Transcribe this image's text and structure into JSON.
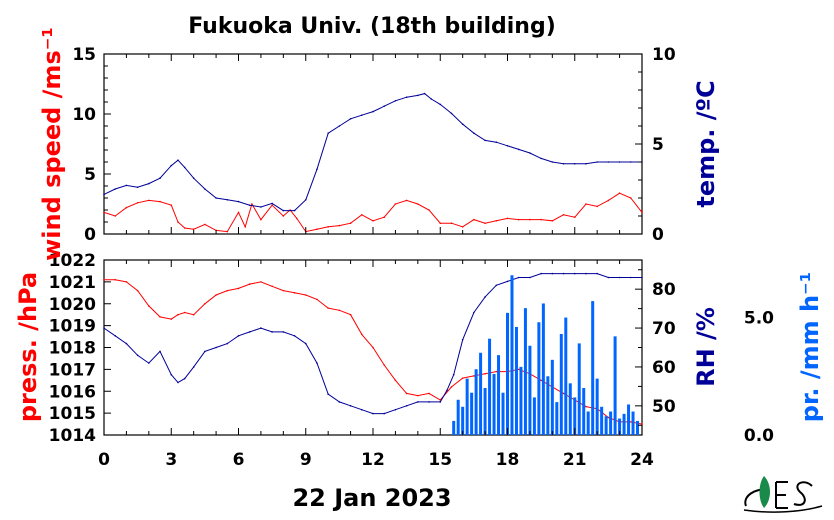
{
  "title": "Fukuoka Univ. (18th building)",
  "date_label": "22 Jan 2023",
  "chart_data": [
    {
      "type": "line",
      "panel": "top",
      "xlim": [
        0,
        24
      ],
      "x_ticks": [
        "0",
        "3",
        "6",
        "9",
        "12",
        "15",
        "18",
        "21",
        "24"
      ],
      "left_axis": {
        "label": "wind speed /ms⁻¹",
        "color": "#ff0000",
        "ylim": [
          0,
          15
        ],
        "ticks": [
          "0",
          "5",
          "10",
          "15"
        ]
      },
      "right_axis": {
        "label": "temp. /ºC",
        "color": "#000099",
        "ylim": [
          0,
          10
        ],
        "ticks": [
          "0",
          "5",
          "10"
        ]
      },
      "series": [
        {
          "axis": "left",
          "color": "#ff0000",
          "x": [
            0,
            0.5,
            1,
            1.5,
            2,
            2.5,
            3,
            3.3,
            3.6,
            4,
            4.5,
            5,
            5.5,
            6,
            6.3,
            6.6,
            7,
            7.5,
            8,
            8.3,
            8.6,
            9,
            9.5,
            10,
            10.5,
            11,
            11.5,
            12,
            12.5,
            13,
            13.5,
            14,
            14.5,
            15,
            15.5,
            16,
            16.5,
            17,
            17.5,
            18,
            18.5,
            19,
            19.5,
            20,
            20.5,
            21,
            21.5,
            22,
            22.5,
            23,
            23.5,
            24
          ],
          "y": [
            1.8,
            1.5,
            2.2,
            2.6,
            2.8,
            2.7,
            2.4,
            1.0,
            0.5,
            0.4,
            0.8,
            0.3,
            0.2,
            1.8,
            0.6,
            2.5,
            1.2,
            2.4,
            1.5,
            2.0,
            1.3,
            0.2,
            0.4,
            0.6,
            0.7,
            0.9,
            1.6,
            1.1,
            1.4,
            2.5,
            2.8,
            2.5,
            2.0,
            0.9,
            0.9,
            0.6,
            1.2,
            0.9,
            1.1,
            1.3,
            1.2,
            1.2,
            1.2,
            1.1,
            1.6,
            1.4,
            2.5,
            2.3,
            2.8,
            3.4,
            3.0,
            1.8
          ]
        },
        {
          "axis": "right",
          "color": "#000099",
          "x": [
            0,
            0.5,
            1,
            1.5,
            2,
            2.5,
            3,
            3.3,
            3.6,
            4,
            4.5,
            5,
            5.5,
            6,
            6.5,
            7,
            7.5,
            8,
            8.5,
            9,
            9.5,
            10,
            10.5,
            11,
            11.5,
            12,
            12.5,
            13,
            13.5,
            14,
            14.3,
            14.6,
            15,
            15.5,
            16,
            16.5,
            17,
            17.5,
            18,
            18.5,
            19,
            19.5,
            20,
            20.5,
            21,
            21.5,
            22,
            22.5,
            23,
            23.5,
            24
          ],
          "y": [
            2.2,
            2.5,
            2.7,
            2.6,
            2.8,
            3.1,
            3.8,
            4.1,
            3.7,
            3.1,
            2.5,
            2.0,
            1.9,
            1.8,
            1.6,
            1.5,
            1.7,
            1.3,
            1.3,
            1.9,
            3.6,
            5.6,
            6.0,
            6.4,
            6.6,
            6.8,
            7.1,
            7.4,
            7.6,
            7.7,
            7.8,
            7.5,
            7.2,
            6.7,
            6.1,
            5.6,
            5.2,
            5.1,
            4.9,
            4.7,
            4.5,
            4.2,
            4.0,
            3.9,
            3.9,
            3.9,
            4.0,
            4.0,
            4.0,
            4.0,
            4.0
          ]
        }
      ]
    },
    {
      "type": "line",
      "panel": "bottom",
      "xlim": [
        0,
        24
      ],
      "x_ticks": [
        "0",
        "3",
        "6",
        "9",
        "12",
        "15",
        "18",
        "21",
        "24"
      ],
      "left_axis": {
        "label": "press. /hPa",
        "color": "#ff0000",
        "ylim": [
          1014,
          1022
        ],
        "ticks": [
          "1014",
          "1015",
          "1016",
          "1017",
          "1018",
          "1019",
          "1020",
          "1021",
          "1022"
        ]
      },
      "right_axis": {
        "label": "RH /%",
        "color": "#000099",
        "ylim": [
          42.5,
          87.5
        ],
        "ticks": [
          "50",
          "60",
          "70",
          "80"
        ]
      },
      "far_axis": {
        "label": "pr. /mm h⁻¹",
        "color": "#0066ff",
        "ylim": [
          0,
          7.45
        ],
        "ticks": [
          "0.0",
          "5.0"
        ]
      },
      "series": [
        {
          "axis": "left",
          "color": "#ff0000",
          "x": [
            0,
            0.5,
            1,
            1.5,
            2,
            2.5,
            3,
            3.3,
            3.6,
            4,
            4.5,
            5,
            5.5,
            6,
            6.5,
            7,
            7.5,
            8,
            8.5,
            9,
            9.5,
            10,
            10.5,
            11,
            11.5,
            12,
            12.5,
            13,
            13.5,
            14,
            14.5,
            15,
            15.5,
            16,
            16.5,
            17,
            17.5,
            18,
            18.5,
            19,
            19.5,
            20,
            20.5,
            21,
            21.5,
            22,
            22.5,
            23,
            23.5,
            24
          ],
          "y": [
            1021.1,
            1021.1,
            1021.0,
            1020.6,
            1019.9,
            1019.4,
            1019.3,
            1019.5,
            1019.6,
            1019.5,
            1020.0,
            1020.4,
            1020.6,
            1020.7,
            1020.9,
            1021.0,
            1020.8,
            1020.6,
            1020.5,
            1020.4,
            1020.2,
            1019.8,
            1019.7,
            1019.5,
            1018.6,
            1018.0,
            1017.2,
            1016.5,
            1015.9,
            1015.8,
            1015.9,
            1015.6,
            1016.2,
            1016.6,
            1016.7,
            1016.8,
            1016.9,
            1016.9,
            1017.0,
            1016.8,
            1016.5,
            1016.2,
            1015.9,
            1015.6,
            1015.3,
            1015.2,
            1014.8,
            1014.6,
            1014.6,
            1014.5
          ]
        },
        {
          "axis": "right",
          "color": "#000099",
          "x": [
            0,
            0.5,
            1,
            1.5,
            2,
            2.5,
            3,
            3.3,
            3.6,
            4,
            4.5,
            5,
            5.5,
            6,
            6.5,
            7,
            7.5,
            8,
            8.5,
            9,
            9.5,
            10,
            10.5,
            11,
            11.5,
            12,
            12.5,
            13,
            13.5,
            14,
            14.5,
            15,
            15.3,
            15.6,
            16,
            16.5,
            17,
            17.5,
            18,
            18.5,
            19,
            19.5,
            20,
            20.5,
            21,
            21.5,
            22,
            22.5,
            23,
            23.5,
            24
          ],
          "y": [
            70,
            68,
            66,
            63,
            61,
            64,
            58,
            56,
            57,
            60,
            64,
            65,
            66,
            68,
            69,
            70,
            69,
            69,
            68,
            66,
            61,
            53,
            51,
            50,
            49,
            48,
            48,
            49,
            50,
            51,
            51,
            51,
            54,
            58,
            67,
            74,
            78,
            81,
            82,
            83,
            83,
            84,
            84,
            84,
            84,
            84,
            84,
            83,
            83,
            83,
            83
          ]
        },
        {
          "axis": "far",
          "color": "#0066ff",
          "kind": "bars",
          "x": [
            15.6,
            15.8,
            16.0,
            16.2,
            16.4,
            16.6,
            16.8,
            17.0,
            17.2,
            17.4,
            17.6,
            17.8,
            18.0,
            18.2,
            18.4,
            18.6,
            18.8,
            19.0,
            19.2,
            19.4,
            19.6,
            19.8,
            20.0,
            20.2,
            20.4,
            20.6,
            20.8,
            21.0,
            21.2,
            21.4,
            21.6,
            21.8,
            22.0,
            22.2,
            22.4,
            22.6,
            22.8,
            23.0,
            23.2,
            23.4,
            23.6,
            23.8
          ],
          "y": [
            0.6,
            1.5,
            1.2,
            2.4,
            1.8,
            2.8,
            3.5,
            2.0,
            4.1,
            2.6,
            3.4,
            1.8,
            5.2,
            6.8,
            4.6,
            2.9,
            5.4,
            3.8,
            1.6,
            4.8,
            5.6,
            2.5,
            3.2,
            1.4,
            4.3,
            5.0,
            2.2,
            1.6,
            3.9,
            2.0,
            1.0,
            5.7,
            2.4,
            1.2,
            0.8,
            1.0,
            4.2,
            0.7,
            0.9,
            1.3,
            1.0,
            0.6
          ]
        }
      ]
    }
  ]
}
